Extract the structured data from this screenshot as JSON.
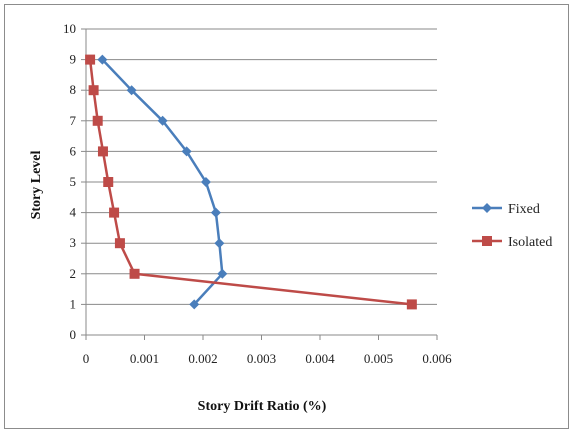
{
  "chart_data": {
    "type": "line",
    "title": "",
    "xlabel": "Story Drift Ratio (%)",
    "ylabel": "Story Level",
    "xlim": [
      0,
      0.006
    ],
    "ylim": [
      0,
      10
    ],
    "x_ticks": [
      "0",
      "0.001",
      "0.002",
      "0.003",
      "0.004",
      "0.005",
      "0.006"
    ],
    "y_ticks": [
      "0",
      "1",
      "2",
      "3",
      "4",
      "5",
      "6",
      "7",
      "8",
      "9",
      "10"
    ],
    "grid": "horizontal",
    "legend_position": "right",
    "series": [
      {
        "name": "Fixed",
        "color": "#4a7ebb",
        "marker": "diamond",
        "points": [
          {
            "x": 0.00185,
            "y": 1
          },
          {
            "x": 0.00233,
            "y": 2
          },
          {
            "x": 0.00228,
            "y": 3
          },
          {
            "x": 0.00222,
            "y": 4
          },
          {
            "x": 0.00205,
            "y": 5
          },
          {
            "x": 0.00172,
            "y": 6
          },
          {
            "x": 0.00131,
            "y": 7
          },
          {
            "x": 0.00078,
            "y": 8
          },
          {
            "x": 0.00028,
            "y": 9
          }
        ]
      },
      {
        "name": "Isolated",
        "color": "#be4b48",
        "marker": "square",
        "points": [
          {
            "x": 0.00557,
            "y": 1
          },
          {
            "x": 0.00083,
            "y": 2
          },
          {
            "x": 0.00058,
            "y": 3
          },
          {
            "x": 0.00048,
            "y": 4
          },
          {
            "x": 0.00038,
            "y": 5
          },
          {
            "x": 0.00029,
            "y": 6
          },
          {
            "x": 0.0002,
            "y": 7
          },
          {
            "x": 0.00013,
            "y": 8
          },
          {
            "x": 7e-05,
            "y": 9
          }
        ]
      }
    ]
  }
}
